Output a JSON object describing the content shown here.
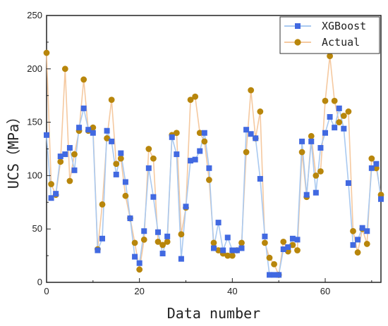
{
  "chart_data": {
    "type": "line",
    "xlabel": "Data number",
    "ylabel": "UCS（MPa）",
    "xlim": [
      0,
      72
    ],
    "ylim": [
      0,
      250
    ],
    "x_ticks": [
      0,
      20,
      40,
      60
    ],
    "y_ticks": [
      0,
      50,
      100,
      150,
      200,
      250
    ],
    "legend_position": "top-right",
    "grid": false,
    "series": [
      {
        "name": "XGBoost",
        "color": "#4169e1",
        "line_color": "#a9c9f0",
        "marker": "square",
        "values": [
          138,
          79,
          83,
          118,
          120,
          126,
          105,
          145,
          163,
          143,
          140,
          30,
          41,
          142,
          132,
          101,
          121,
          94,
          60,
          24,
          18,
          48,
          107,
          80,
          47,
          27,
          43,
          136,
          120,
          22,
          71,
          114,
          115,
          123,
          140,
          107,
          32,
          56,
          30,
          42,
          30,
          30,
          32,
          143,
          139,
          135,
          97,
          43,
          7,
          7,
          7,
          31,
          33,
          41,
          40,
          132,
          82,
          132,
          84,
          126,
          140,
          155,
          145,
          163,
          144,
          93,
          35,
          40,
          51,
          48,
          107,
          111,
          78
        ]
      },
      {
        "name": "Actual",
        "color": "#b8860b",
        "line_color": "#f5c9a0",
        "marker": "circle",
        "values": [
          215,
          92,
          82,
          113,
          200,
          95,
          120,
          142,
          190,
          142,
          145,
          31,
          73,
          135,
          171,
          111,
          116,
          81,
          60,
          37,
          12,
          40,
          125,
          116,
          38,
          35,
          38,
          138,
          140,
          45,
          70,
          171,
          174,
          140,
          132,
          96,
          37,
          30,
          27,
          25,
          25,
          30,
          37,
          122,
          180,
          135,
          160,
          37,
          23,
          17,
          7,
          38,
          29,
          35,
          30,
          122,
          80,
          137,
          100,
          104,
          170,
          212,
          170,
          150,
          156,
          160,
          48,
          28,
          50,
          36,
          116,
          107,
          82
        ]
      }
    ]
  }
}
